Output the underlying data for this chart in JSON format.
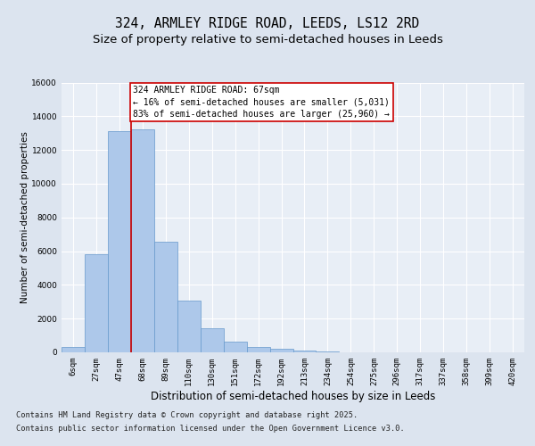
{
  "title_line1": "324, ARMLEY RIDGE ROAD, LEEDS, LS12 2RD",
  "title_line2": "Size of property relative to semi-detached houses in Leeds",
  "xlabel": "Distribution of semi-detached houses by size in Leeds",
  "ylabel": "Number of semi-detached properties",
  "categories": [
    "6sqm",
    "27sqm",
    "47sqm",
    "68sqm",
    "89sqm",
    "110sqm",
    "130sqm",
    "151sqm",
    "172sqm",
    "192sqm",
    "213sqm",
    "234sqm",
    "254sqm",
    "275sqm",
    "296sqm",
    "317sqm",
    "337sqm",
    "358sqm",
    "399sqm",
    "420sqm"
  ],
  "values": [
    300,
    5800,
    13100,
    13200,
    6550,
    3050,
    1450,
    650,
    300,
    200,
    100,
    50,
    0,
    0,
    0,
    0,
    0,
    0,
    0,
    0
  ],
  "bar_color": "#adc8ea",
  "bar_edge_color": "#6699cc",
  "vline_x": 2.5,
  "vline_color": "#cc0000",
  "annotation_text": "324 ARMLEY RIDGE ROAD: 67sqm\n← 16% of semi-detached houses are smaller (5,031)\n83% of semi-detached houses are larger (25,960) →",
  "annotation_box_facecolor": "#ffffff",
  "annotation_box_edgecolor": "#cc0000",
  "footer_line1": "Contains HM Land Registry data © Crown copyright and database right 2025.",
  "footer_line2": "Contains public sector information licensed under the Open Government Licence v3.0.",
  "ylim": [
    0,
    16000
  ],
  "yticks": [
    0,
    2000,
    4000,
    6000,
    8000,
    10000,
    12000,
    14000,
    16000
  ],
  "fig_facecolor": "#dce4ef",
  "ax_facecolor": "#e8eef6",
  "grid_color": "#ffffff",
  "title_fontsize": 10.5,
  "subtitle_fontsize": 9.5,
  "ylabel_fontsize": 7.5,
  "xlabel_fontsize": 8.5,
  "tick_fontsize": 6.5,
  "annotation_fontsize": 7,
  "footer_fontsize": 6.2
}
